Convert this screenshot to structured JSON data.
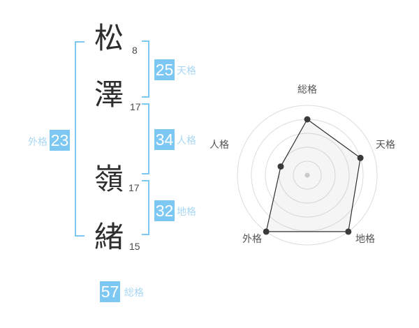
{
  "name_display": {
    "characters": [
      {
        "char": "松",
        "strokes": "8"
      },
      {
        "char": "澤",
        "strokes": "17"
      },
      {
        "char": "嶺",
        "strokes": "17"
      },
      {
        "char": "緒",
        "strokes": "15"
      }
    ]
  },
  "scores": {
    "tenkaku": {
      "value": "25",
      "label": "天格"
    },
    "jinkaku": {
      "value": "34",
      "label": "人格"
    },
    "chikaku": {
      "value": "32",
      "label": "地格"
    },
    "gaikaku": {
      "value": "23",
      "label": "外格"
    },
    "soukaku": {
      "value": "57",
      "label": "総格"
    }
  },
  "colors": {
    "accent_blue": "#7dc8f2",
    "label_blue": "#aad7f3",
    "kanji_dark": "#2e2e2e",
    "stroke_count_gray": "#4a4a4a",
    "radar_ring": "#dcdcdc",
    "radar_line": "#2f2f2f",
    "radar_point": "#3a3a3a",
    "radar_center_dot": "#c9c9c9",
    "radar_label": "#555555"
  },
  "chart_data": {
    "type": "radar",
    "title": "",
    "axes": [
      "総格",
      "天格",
      "地格",
      "外格",
      "人格"
    ],
    "values": [
      80,
      80,
      100,
      100,
      40
    ],
    "max": 100,
    "rings": 5,
    "grid": "circular",
    "legend_position": "none"
  }
}
